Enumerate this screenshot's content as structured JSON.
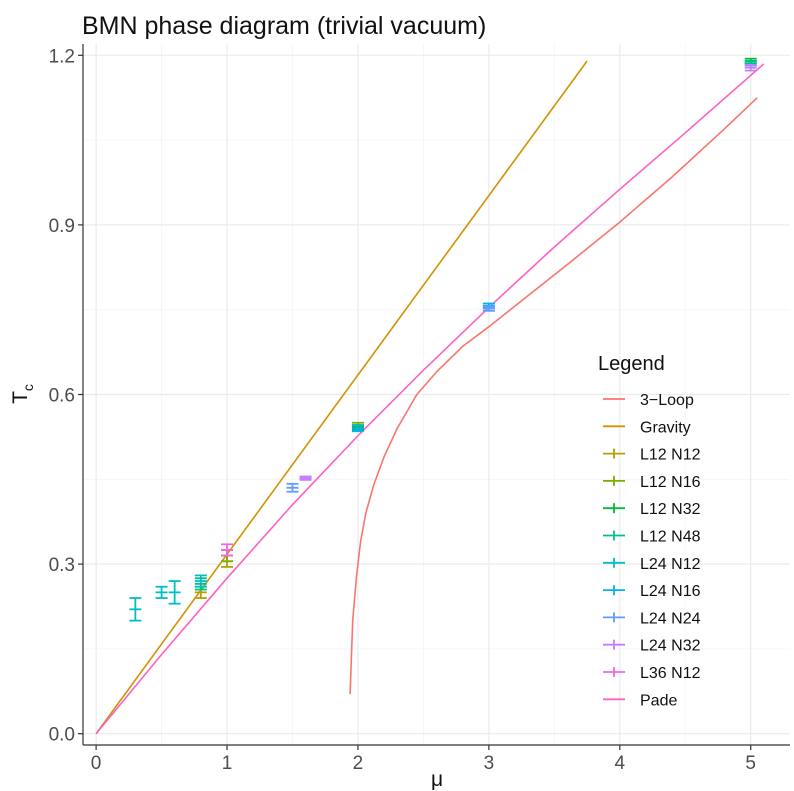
{
  "chart_data": {
    "type": "line",
    "title": "BMN phase diagram (trivial vacuum)",
    "xlabel": "μ",
    "ylabel": "T",
    "ylabel_subscript": "c",
    "xlim": [
      -0.1,
      5.3
    ],
    "ylim": [
      -0.02,
      1.22
    ],
    "x_ticks": [
      0,
      1,
      2,
      3,
      4,
      5
    ],
    "x_tick_labels": [
      "0",
      "1",
      "2",
      "3",
      "4",
      "5"
    ],
    "y_ticks": [
      0.0,
      0.3,
      0.6,
      0.9,
      1.2
    ],
    "y_tick_labels": [
      "0.0",
      "0.3",
      "0.6",
      "0.9",
      "1.2"
    ],
    "grid": true,
    "legend": {
      "title": "Legend",
      "position": "right-bottom"
    },
    "lines": [
      {
        "name": "3−Loop",
        "color": "#F8766D",
        "x": [
          1.94,
          1.96,
          1.99,
          2.02,
          2.06,
          2.12,
          2.2,
          2.3,
          2.45,
          2.6,
          2.8,
          3.0,
          3.3,
          3.6,
          4.0,
          4.4,
          4.8,
          5.05
        ],
        "y": [
          0.07,
          0.2,
          0.28,
          0.34,
          0.39,
          0.44,
          0.49,
          0.54,
          0.6,
          0.64,
          0.685,
          0.72,
          0.775,
          0.83,
          0.905,
          0.985,
          1.07,
          1.125
        ]
      },
      {
        "name": "Gravity",
        "color": "#D39200",
        "x": [
          0.0,
          3.75
        ],
        "y": [
          0.0,
          1.19
        ]
      },
      {
        "name": "Pade",
        "color": "#FF61C3",
        "x": [
          0.0,
          0.5,
          1.0,
          1.5,
          2.0,
          2.5,
          3.0,
          3.5,
          4.0,
          4.5,
          5.1
        ],
        "y": [
          0.0,
          0.14,
          0.275,
          0.405,
          0.527,
          0.643,
          0.754,
          0.861,
          0.963,
          1.063,
          1.185
        ]
      }
    ],
    "series": [
      {
        "name": "L12 N12",
        "color": "#B79F00",
        "points": [
          {
            "x": 0.8,
            "y": 0.25,
            "ymin": 0.24,
            "ymax": 0.26
          },
          {
            "x": 1.0,
            "y": 0.305,
            "ymin": 0.295,
            "ymax": 0.315
          }
        ]
      },
      {
        "name": "L12 N16",
        "color": "#7CAE00",
        "points": [
          {
            "x": 1.0,
            "y": 0.315,
            "ymin": 0.305,
            "ymax": 0.325
          },
          {
            "x": 2.0,
            "y": 0.545,
            "ymin": 0.54,
            "ymax": 0.55
          }
        ]
      },
      {
        "name": "L12 N32",
        "color": "#00BA38",
        "points": [
          {
            "x": 2.0,
            "y": 0.542,
            "ymin": 0.538,
            "ymax": 0.546
          },
          {
            "x": 5.0,
            "y": 1.19,
            "ymin": 1.186,
            "ymax": 1.194
          }
        ]
      },
      {
        "name": "L12 N48",
        "color": "#00C08B",
        "points": [
          {
            "x": 0.8,
            "y": 0.265,
            "ymin": 0.255,
            "ymax": 0.275
          },
          {
            "x": 5.0,
            "y": 1.186,
            "ymin": 1.182,
            "ymax": 1.19
          }
        ]
      },
      {
        "name": "L24 N12",
        "color": "#00BFC4",
        "points": [
          {
            "x": 0.3,
            "y": 0.22,
            "ymin": 0.2,
            "ymax": 0.24
          },
          {
            "x": 0.5,
            "y": 0.25,
            "ymin": 0.24,
            "ymax": 0.26
          },
          {
            "x": 0.6,
            "y": 0.25,
            "ymin": 0.23,
            "ymax": 0.27
          },
          {
            "x": 0.8,
            "y": 0.27,
            "ymin": 0.26,
            "ymax": 0.28
          }
        ]
      },
      {
        "name": "L24 N16",
        "color": "#00B4F0",
        "points": [
          {
            "x": 2.0,
            "y": 0.54,
            "ymin": 0.535,
            "ymax": 0.545
          },
          {
            "x": 3.0,
            "y": 0.757,
            "ymin": 0.753,
            "ymax": 0.761
          }
        ]
      },
      {
        "name": "L24 N24",
        "color": "#619CFF",
        "points": [
          {
            "x": 1.5,
            "y": 0.435,
            "ymin": 0.428,
            "ymax": 0.442
          },
          {
            "x": 3.0,
            "y": 0.752,
            "ymin": 0.748,
            "ymax": 0.756
          }
        ]
      },
      {
        "name": "L24 N32",
        "color": "#C77CFF",
        "points": [
          {
            "x": 1.6,
            "y": 0.452,
            "ymin": 0.449,
            "ymax": 0.455
          },
          {
            "x": 5.0,
            "y": 1.178,
            "ymin": 1.173,
            "ymax": 1.183
          }
        ]
      },
      {
        "name": "L36 N12",
        "color": "#F564E3",
        "points": [
          {
            "x": 1.0,
            "y": 0.325,
            "ymin": 0.315,
            "ymax": 0.335
          }
        ]
      }
    ]
  }
}
